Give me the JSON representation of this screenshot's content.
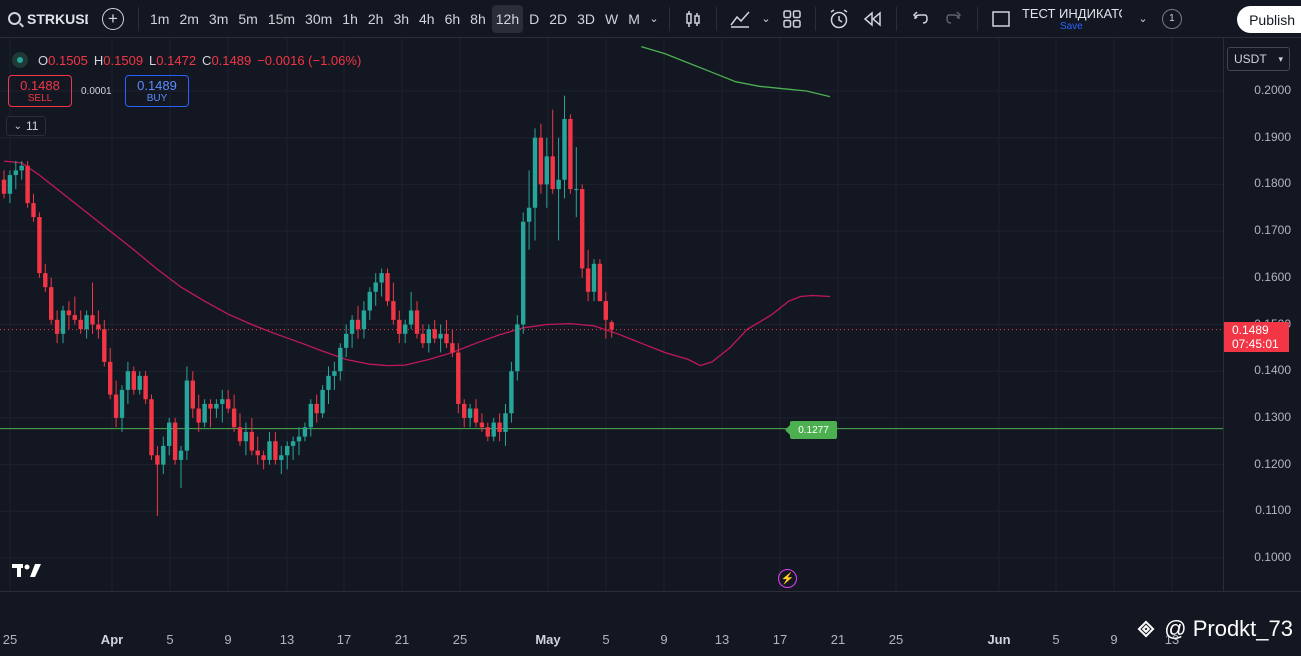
{
  "toolbar": {
    "symbol": "STRKUSDT",
    "timeframes": [
      "1m",
      "2m",
      "3m",
      "5m",
      "15m",
      "30m",
      "1h",
      "2h",
      "3h",
      "4h",
      "6h",
      "8h",
      "12h",
      "D",
      "2D",
      "3D",
      "W",
      "M"
    ],
    "active_timeframe": "12h",
    "layout_name": "ТЕСТ ИНДИКАТОР",
    "layout_save": "Save",
    "badge": "1",
    "publish": "Publish"
  },
  "legend": {
    "o_label": "O",
    "o": "0.1505",
    "h_label": "H",
    "h": "0.1509",
    "l_label": "L",
    "l": "0.1472",
    "c_label": "C",
    "c": "0.1489",
    "change": "−0.0016 (−1.06%)"
  },
  "trade": {
    "sell_price": "0.1488",
    "sell_label": "SELL",
    "spread": "0.0001",
    "buy_price": "0.1489",
    "buy_label": "BUY"
  },
  "indicators_toggle": "11",
  "currency": "USDT",
  "current_price": {
    "price": "0.1489",
    "countdown": "07:45:01"
  },
  "horizontal_line": {
    "value": 0.1277,
    "label": "0.1277"
  },
  "colors": {
    "up": "#26a69a",
    "down": "#f23645",
    "ma_short": "#c2185b",
    "ma_long": "#4caf50",
    "hline": "#4caf50",
    "bg": "#131722"
  },
  "watermark": "@ Prodkt_73",
  "chart_data": {
    "type": "candlestick",
    "y_ticks": [
      "0.2000",
      "0.1900",
      "0.1800",
      "0.1700",
      "0.1600",
      "0.1500",
      "0.1400",
      "0.1300",
      "0.1200",
      "0.1100",
      "0.1000"
    ],
    "ylim": [
      0.0935,
      0.2095
    ],
    "x_ticks": [
      "25",
      "Apr",
      "5",
      "9",
      "13",
      "17",
      "21",
      "25",
      "May",
      "5",
      "9",
      "13",
      "17",
      "21",
      "25",
      "Jun",
      "5",
      "9",
      "13"
    ],
    "candles": [
      [
        0.181,
        0.183,
        0.177,
        0.178
      ],
      [
        0.178,
        0.183,
        0.176,
        0.182
      ],
      [
        0.182,
        0.185,
        0.179,
        0.183
      ],
      [
        0.183,
        0.185,
        0.181,
        0.184
      ],
      [
        0.184,
        0.185,
        0.175,
        0.176
      ],
      [
        0.176,
        0.178,
        0.172,
        0.173
      ],
      [
        0.173,
        0.174,
        0.16,
        0.161
      ],
      [
        0.161,
        0.163,
        0.157,
        0.158
      ],
      [
        0.158,
        0.16,
        0.15,
        0.151
      ],
      [
        0.151,
        0.153,
        0.146,
        0.148
      ],
      [
        0.148,
        0.154,
        0.146,
        0.153
      ],
      [
        0.153,
        0.155,
        0.149,
        0.152
      ],
      [
        0.152,
        0.156,
        0.15,
        0.151
      ],
      [
        0.151,
        0.153,
        0.148,
        0.149
      ],
      [
        0.149,
        0.153,
        0.147,
        0.152
      ],
      [
        0.152,
        0.159,
        0.148,
        0.15
      ],
      [
        0.15,
        0.153,
        0.147,
        0.149
      ],
      [
        0.149,
        0.151,
        0.141,
        0.142
      ],
      [
        0.142,
        0.145,
        0.134,
        0.135
      ],
      [
        0.135,
        0.138,
        0.128,
        0.13
      ],
      [
        0.13,
        0.137,
        0.127,
        0.136
      ],
      [
        0.136,
        0.142,
        0.133,
        0.14
      ],
      [
        0.14,
        0.141,
        0.135,
        0.136
      ],
      [
        0.136,
        0.14,
        0.135,
        0.139
      ],
      [
        0.139,
        0.14,
        0.133,
        0.134
      ],
      [
        0.134,
        0.135,
        0.121,
        0.122
      ],
      [
        0.122,
        0.124,
        0.109,
        0.12
      ],
      [
        0.12,
        0.126,
        0.118,
        0.124
      ],
      [
        0.124,
        0.13,
        0.122,
        0.129
      ],
      [
        0.129,
        0.13,
        0.12,
        0.121
      ],
      [
        0.121,
        0.124,
        0.115,
        0.123
      ],
      [
        0.123,
        0.141,
        0.121,
        0.138
      ],
      [
        0.138,
        0.14,
        0.13,
        0.132
      ],
      [
        0.132,
        0.135,
        0.127,
        0.129
      ],
      [
        0.129,
        0.134,
        0.128,
        0.133
      ],
      [
        0.133,
        0.134,
        0.128,
        0.132
      ],
      [
        0.132,
        0.134,
        0.13,
        0.133
      ],
      [
        0.133,
        0.136,
        0.129,
        0.134
      ],
      [
        0.134,
        0.136,
        0.131,
        0.132
      ],
      [
        0.132,
        0.135,
        0.127,
        0.128
      ],
      [
        0.128,
        0.131,
        0.124,
        0.125
      ],
      [
        0.125,
        0.129,
        0.122,
        0.127
      ],
      [
        0.127,
        0.13,
        0.122,
        0.123
      ],
      [
        0.123,
        0.126,
        0.12,
        0.122
      ],
      [
        0.122,
        0.123,
        0.119,
        0.121
      ],
      [
        0.121,
        0.127,
        0.12,
        0.125
      ],
      [
        0.125,
        0.127,
        0.12,
        0.121
      ],
      [
        0.121,
        0.124,
        0.118,
        0.122
      ],
      [
        0.122,
        0.125,
        0.119,
        0.124
      ],
      [
        0.124,
        0.126,
        0.121,
        0.125
      ],
      [
        0.125,
        0.128,
        0.122,
        0.126
      ],
      [
        0.126,
        0.129,
        0.125,
        0.128
      ],
      [
        0.128,
        0.134,
        0.126,
        0.133
      ],
      [
        0.133,
        0.135,
        0.129,
        0.131
      ],
      [
        0.131,
        0.137,
        0.13,
        0.136
      ],
      [
        0.136,
        0.141,
        0.133,
        0.139
      ],
      [
        0.139,
        0.142,
        0.136,
        0.14
      ],
      [
        0.14,
        0.146,
        0.138,
        0.145
      ],
      [
        0.145,
        0.15,
        0.143,
        0.148
      ],
      [
        0.148,
        0.152,
        0.145,
        0.151
      ],
      [
        0.151,
        0.154,
        0.147,
        0.149
      ],
      [
        0.149,
        0.155,
        0.147,
        0.153
      ],
      [
        0.153,
        0.158,
        0.151,
        0.157
      ],
      [
        0.157,
        0.161,
        0.154,
        0.159
      ],
      [
        0.159,
        0.162,
        0.156,
        0.161
      ],
      [
        0.161,
        0.162,
        0.154,
        0.155
      ],
      [
        0.155,
        0.159,
        0.15,
        0.151
      ],
      [
        0.151,
        0.153,
        0.146,
        0.148
      ],
      [
        0.148,
        0.151,
        0.146,
        0.15
      ],
      [
        0.15,
        0.157,
        0.149,
        0.153
      ],
      [
        0.153,
        0.155,
        0.147,
        0.148
      ],
      [
        0.148,
        0.15,
        0.145,
        0.146
      ],
      [
        0.146,
        0.15,
        0.144,
        0.149
      ],
      [
        0.149,
        0.151,
        0.146,
        0.147
      ],
      [
        0.147,
        0.15,
        0.144,
        0.148
      ],
      [
        0.148,
        0.151,
        0.145,
        0.146
      ],
      [
        0.146,
        0.149,
        0.143,
        0.144
      ],
      [
        0.144,
        0.146,
        0.131,
        0.133
      ],
      [
        0.133,
        0.134,
        0.128,
        0.13
      ],
      [
        0.13,
        0.133,
        0.128,
        0.132
      ],
      [
        0.132,
        0.134,
        0.128,
        0.129
      ],
      [
        0.129,
        0.131,
        0.127,
        0.128
      ],
      [
        0.128,
        0.129,
        0.125,
        0.126
      ],
      [
        0.126,
        0.13,
        0.125,
        0.129
      ],
      [
        0.129,
        0.131,
        0.125,
        0.127
      ],
      [
        0.127,
        0.133,
        0.124,
        0.131
      ],
      [
        0.131,
        0.142,
        0.129,
        0.14
      ],
      [
        0.14,
        0.152,
        0.138,
        0.15
      ],
      [
        0.15,
        0.174,
        0.148,
        0.172
      ],
      [
        0.172,
        0.183,
        0.166,
        0.175
      ],
      [
        0.175,
        0.192,
        0.168,
        0.19
      ],
      [
        0.19,
        0.193,
        0.178,
        0.18
      ],
      [
        0.18,
        0.19,
        0.175,
        0.186
      ],
      [
        0.186,
        0.196,
        0.178,
        0.179
      ],
      [
        0.179,
        0.19,
        0.168,
        0.181
      ],
      [
        0.181,
        0.199,
        0.177,
        0.194
      ],
      [
        0.194,
        0.195,
        0.178,
        0.179
      ],
      [
        0.179,
        0.188,
        0.173,
        0.179
      ],
      [
        0.179,
        0.18,
        0.16,
        0.162
      ],
      [
        0.162,
        0.166,
        0.155,
        0.157
      ],
      [
        0.157,
        0.164,
        0.155,
        0.163
      ],
      [
        0.163,
        0.164,
        0.155,
        0.155
      ],
      [
        0.155,
        0.157,
        0.147,
        0.151
      ],
      [
        0.1505,
        0.1509,
        0.1472,
        0.1489
      ]
    ],
    "ma_short": [
      [
        0,
        0.185
      ],
      [
        3,
        0.1846
      ],
      [
        6,
        0.182
      ],
      [
        10,
        0.178
      ],
      [
        14,
        0.174
      ],
      [
        18,
        0.17
      ],
      [
        22,
        0.166
      ],
      [
        26,
        0.1618
      ],
      [
        30,
        0.158
      ],
      [
        34,
        0.155
      ],
      [
        38,
        0.1522
      ],
      [
        42,
        0.15
      ],
      [
        46,
        0.148
      ],
      [
        50,
        0.1462
      ],
      [
        54,
        0.1443
      ],
      [
        58,
        0.1425
      ],
      [
        62,
        0.1415
      ],
      [
        65,
        0.1412
      ],
      [
        68,
        0.1413
      ],
      [
        72,
        0.1425
      ],
      [
        76,
        0.144
      ],
      [
        80,
        0.146
      ],
      [
        84,
        0.1478
      ],
      [
        88,
        0.1493
      ],
      [
        92,
        0.15
      ],
      [
        96,
        0.1502
      ],
      [
        100,
        0.1497
      ],
      [
        104,
        0.148
      ],
      [
        108,
        0.146
      ],
      [
        112,
        0.144
      ],
      [
        116,
        0.1425
      ],
      [
        118,
        0.1412
      ],
      [
        120,
        0.142
      ],
      [
        123,
        0.145
      ],
      [
        126,
        0.149
      ],
      [
        130,
        0.152
      ],
      [
        133,
        0.155
      ],
      [
        135,
        0.156
      ],
      [
        137,
        0.1562
      ],
      [
        140,
        0.156
      ]
    ],
    "ma_long": [
      [
        108,
        0.2095
      ],
      [
        112,
        0.208
      ],
      [
        116,
        0.206
      ],
      [
        120,
        0.204
      ],
      [
        124,
        0.202
      ],
      [
        128,
        0.201
      ],
      [
        132,
        0.2005
      ],
      [
        136,
        0.2
      ],
      [
        140,
        0.1988
      ]
    ]
  }
}
